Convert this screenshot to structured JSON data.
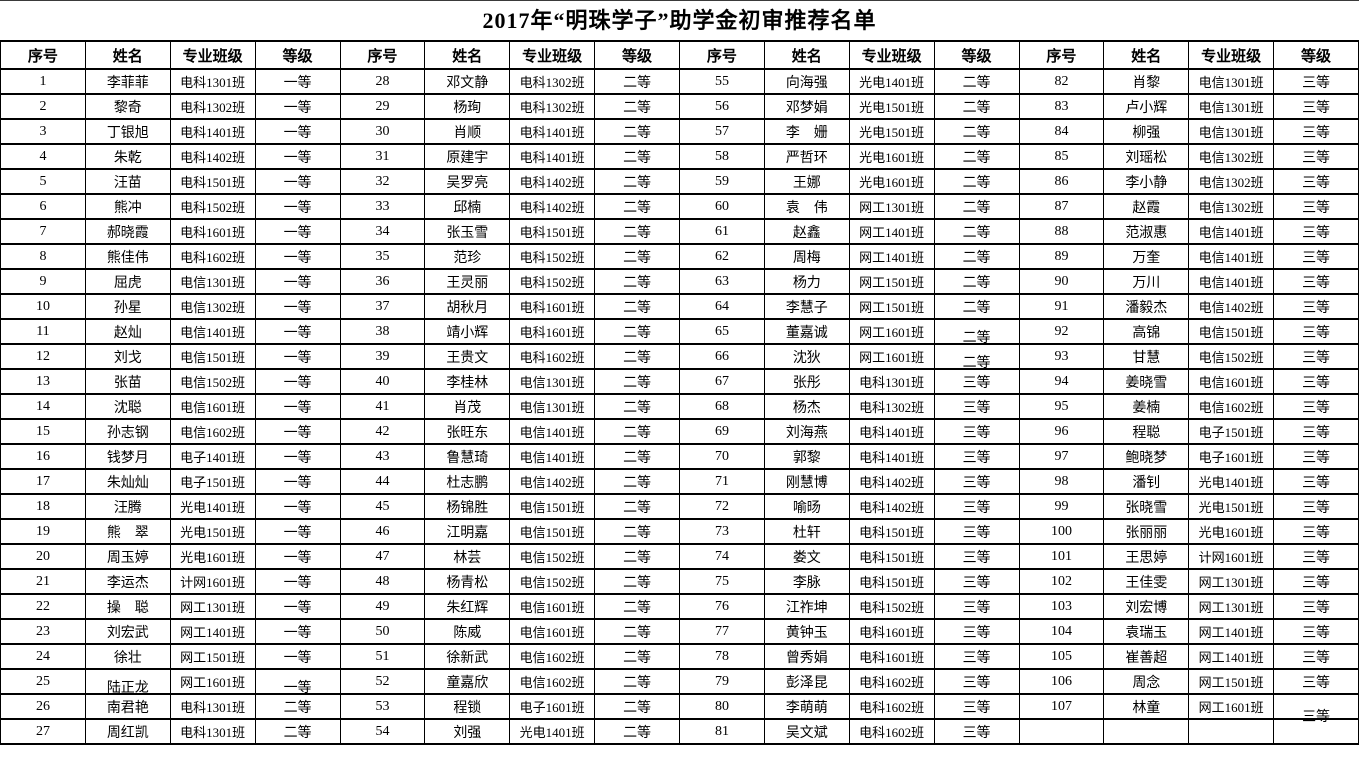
{
  "title": "2017年“明珠学子”助学金初审推荐名单",
  "table": {
    "headers": [
      "序号",
      "姓名",
      "专业班级",
      "等级"
    ],
    "groups": [
      {
        "rows": [
          [
            "1",
            "李菲菲",
            "电科1301班",
            "一等"
          ],
          [
            "2",
            "黎奇",
            "电科1302班",
            "一等"
          ],
          [
            "3",
            "丁银旭",
            "电科1401班",
            "一等"
          ],
          [
            "4",
            "朱乾",
            "电科1402班",
            "一等"
          ],
          [
            "5",
            "汪苗",
            "电科1501班",
            "一等"
          ],
          [
            "6",
            "熊冲",
            "电科1502班",
            "一等"
          ],
          [
            "7",
            "郝晓霞",
            "电科1601班",
            "一等"
          ],
          [
            "8",
            "熊佳伟",
            "电科1602班",
            "一等"
          ],
          [
            "9",
            "屈虎",
            "电信1301班",
            "一等"
          ],
          [
            "10",
            "孙星",
            "电信1302班",
            "一等"
          ],
          [
            "11",
            "赵灿",
            "电信1401班",
            "一等"
          ],
          [
            "12",
            "刘戈",
            "电信1501班",
            "一等"
          ],
          [
            "13",
            "张苗",
            "电信1502班",
            "一等"
          ],
          [
            "14",
            "沈聪",
            "电信1601班",
            "一等"
          ],
          [
            "15",
            "孙志钢",
            "电信1602班",
            "一等"
          ],
          [
            "16",
            "钱梦月",
            "电子1401班",
            "一等"
          ],
          [
            "17",
            "朱灿灿",
            "电子1501班",
            "一等"
          ],
          [
            "18",
            "汪腾",
            "光电1401班",
            "一等"
          ],
          [
            "19",
            "熊　翠",
            "光电1501班",
            "一等"
          ],
          [
            "20",
            "周玉婷",
            "光电1601班",
            "一等"
          ],
          [
            "21",
            "李运杰",
            "计网1601班",
            "一等"
          ],
          [
            "22",
            "操　聪",
            "网工1301班",
            "一等"
          ],
          [
            "23",
            "刘宏武",
            "网工1401班",
            "一等"
          ],
          [
            "24",
            "徐壮",
            "网工1501班",
            "一等"
          ],
          [
            "25",
            "陆正龙",
            "网工1601班",
            "一等"
          ],
          [
            "26",
            "南君艳",
            "电科1301班",
            "二等"
          ],
          [
            "27",
            "周红凯",
            "电科1301班",
            "二等"
          ]
        ]
      },
      {
        "rows": [
          [
            "28",
            "邓文静",
            "电科1302班",
            "二等"
          ],
          [
            "29",
            "杨珣",
            "电科1302班",
            "二等"
          ],
          [
            "30",
            "肖顺",
            "电科1401班",
            "二等"
          ],
          [
            "31",
            "原建宇",
            "电科1401班",
            "二等"
          ],
          [
            "32",
            "吴罗亮",
            "电科1402班",
            "二等"
          ],
          [
            "33",
            "邱楠",
            "电科1402班",
            "二等"
          ],
          [
            "34",
            "张玉雪",
            "电科1501班",
            "二等"
          ],
          [
            "35",
            "范珍",
            "电科1502班",
            "二等"
          ],
          [
            "36",
            "王灵丽",
            "电科1502班",
            "二等"
          ],
          [
            "37",
            "胡秋月",
            "电科1601班",
            "二等"
          ],
          [
            "38",
            "靖小辉",
            "电科1601班",
            "二等"
          ],
          [
            "39",
            "王贵文",
            "电科1602班",
            "二等"
          ],
          [
            "40",
            "李桂林",
            "电信1301班",
            "二等"
          ],
          [
            "41",
            "肖茂",
            "电信1301班",
            "二等"
          ],
          [
            "42",
            "张旺东",
            "电信1401班",
            "二等"
          ],
          [
            "43",
            "鲁慧琦",
            "电信1401班",
            "二等"
          ],
          [
            "44",
            "杜志鹏",
            "电信1402班",
            "二等"
          ],
          [
            "45",
            "杨锦胜",
            "电信1501班",
            "二等"
          ],
          [
            "46",
            "江明嘉",
            "电信1501班",
            "二等"
          ],
          [
            "47",
            "林芸",
            "电信1502班",
            "二等"
          ],
          [
            "48",
            "杨青松",
            "电信1502班",
            "二等"
          ],
          [
            "49",
            "朱红辉",
            "电信1601班",
            "二等"
          ],
          [
            "50",
            "陈威",
            "电信1601班",
            "二等"
          ],
          [
            "51",
            "徐新武",
            "电信1602班",
            "二等"
          ],
          [
            "52",
            "童嘉欣",
            "电信1602班",
            "二等"
          ],
          [
            "53",
            "程锁",
            "电子1601班",
            "二等"
          ],
          [
            "54",
            "刘强",
            "光电1401班",
            "二等"
          ]
        ]
      },
      {
        "rows": [
          [
            "55",
            "向海强",
            "光电1401班",
            "二等"
          ],
          [
            "56",
            "邓梦娟",
            "光电1501班",
            "二等"
          ],
          [
            "57",
            "李　姗",
            "光电1501班",
            "二等"
          ],
          [
            "58",
            "严哲环",
            "光电1601班",
            "二等"
          ],
          [
            "59",
            "王娜",
            "光电1601班",
            "二等"
          ],
          [
            "60",
            "袁　伟",
            "网工1301班",
            "二等"
          ],
          [
            "61",
            "赵鑫",
            "网工1401班",
            "二等"
          ],
          [
            "62",
            "周梅",
            "网工1401班",
            "二等"
          ],
          [
            "63",
            "杨力",
            "网工1501班",
            "二等"
          ],
          [
            "64",
            "李慧子",
            "网工1501班",
            "二等"
          ],
          [
            "65",
            "董嘉诚",
            "网工1601班",
            "二等"
          ],
          [
            "66",
            "沈狄",
            "网工1601班",
            "二等"
          ],
          [
            "67",
            "张彤",
            "电科1301班",
            "三等"
          ],
          [
            "68",
            "杨杰",
            "电科1302班",
            "三等"
          ],
          [
            "69",
            "刘海燕",
            "电科1401班",
            "三等"
          ],
          [
            "70",
            "郭黎",
            "电科1401班",
            "三等"
          ],
          [
            "71",
            "刚慧博",
            "电科1402班",
            "三等"
          ],
          [
            "72",
            "喻旸",
            "电科1402班",
            "三等"
          ],
          [
            "73",
            "杜轩",
            "电科1501班",
            "三等"
          ],
          [
            "74",
            "娄文",
            "电科1501班",
            "三等"
          ],
          [
            "75",
            "李脉",
            "电科1501班",
            "三等"
          ],
          [
            "76",
            "江祚坤",
            "电科1502班",
            "三等"
          ],
          [
            "77",
            "黄钟玉",
            "电科1601班",
            "三等"
          ],
          [
            "78",
            "曾秀娟",
            "电科1601班",
            "三等"
          ],
          [
            "79",
            "彭泽昆",
            "电科1602班",
            "三等"
          ],
          [
            "80",
            "李萌萌",
            "电科1602班",
            "三等"
          ],
          [
            "81",
            "吴文斌",
            "电科1602班",
            "三等"
          ]
        ]
      },
      {
        "rows": [
          [
            "82",
            "肖黎",
            "电信1301班",
            "三等"
          ],
          [
            "83",
            "卢小辉",
            "电信1301班",
            "三等"
          ],
          [
            "84",
            "柳强",
            "电信1301班",
            "三等"
          ],
          [
            "85",
            "刘瑶松",
            "电信1302班",
            "三等"
          ],
          [
            "86",
            "李小静",
            "电信1302班",
            "三等"
          ],
          [
            "87",
            "赵霞",
            "电信1302班",
            "三等"
          ],
          [
            "88",
            "范淑惠",
            "电信1401班",
            "三等"
          ],
          [
            "89",
            "万奎",
            "电信1401班",
            "三等"
          ],
          [
            "90",
            "万川",
            "电信1401班",
            "三等"
          ],
          [
            "91",
            "潘毅杰",
            "电信1402班",
            "三等"
          ],
          [
            "92",
            "高锦",
            "电信1501班",
            "三等"
          ],
          [
            "93",
            "甘慧",
            "电信1502班",
            "三等"
          ],
          [
            "94",
            "姜晓雪",
            "电信1601班",
            "三等"
          ],
          [
            "95",
            "姜楠",
            "电信1602班",
            "三等"
          ],
          [
            "96",
            "程聪",
            "电子1501班",
            "三等"
          ],
          [
            "97",
            "鲍晓梦",
            "电子1601班",
            "三等"
          ],
          [
            "98",
            "潘钊",
            "光电1401班",
            "三等"
          ],
          [
            "99",
            "张晓雪",
            "光电1501班",
            "三等"
          ],
          [
            "100",
            "张丽丽",
            "光电1601班",
            "三等"
          ],
          [
            "101",
            "王思婷",
            "计网1601班",
            "三等"
          ],
          [
            "102",
            "王佳雯",
            "网工1301班",
            "三等"
          ],
          [
            "103",
            "刘宏博",
            "网工1301班",
            "三等"
          ],
          [
            "104",
            "袁瑞玉",
            "网工1401班",
            "三等"
          ],
          [
            "105",
            "崔善超",
            "网工1401班",
            "三等"
          ],
          [
            "106",
            "周念",
            "网工1501班",
            "三等"
          ],
          [
            "107",
            "林童",
            "网工1601班",
            "三等"
          ]
        ]
      }
    ]
  }
}
